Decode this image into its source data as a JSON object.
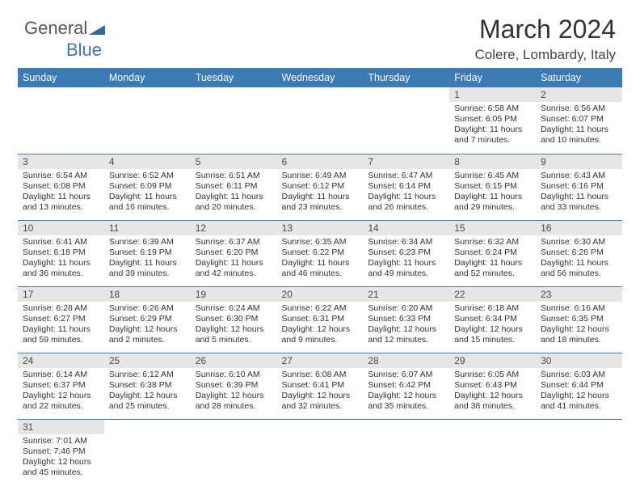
{
  "logo": {
    "text_gray": "General",
    "text_blue": "Blue",
    "tri_color": "#2d6aa3"
  },
  "title": "March 2024",
  "subtitle": "Colere, Lombardy, Italy",
  "header_bg": "#3b7ab5",
  "daynum_bg": "#e6e6e6",
  "row_border": "#3b7ab5",
  "weekdays": [
    "Sunday",
    "Monday",
    "Tuesday",
    "Wednesday",
    "Thursday",
    "Friday",
    "Saturday"
  ],
  "label_fontsize": 12.5,
  "cell_fontsize": 10.5,
  "rows": [
    [
      null,
      null,
      null,
      null,
      null,
      {
        "n": "1",
        "sr": "6:58 AM",
        "ss": "6:05 PM",
        "dh": "11",
        "dm": "7"
      },
      {
        "n": "2",
        "sr": "6:56 AM",
        "ss": "6:07 PM",
        "dh": "11",
        "dm": "10"
      }
    ],
    [
      {
        "n": "3",
        "sr": "6:54 AM",
        "ss": "6:08 PM",
        "dh": "11",
        "dm": "13"
      },
      {
        "n": "4",
        "sr": "6:52 AM",
        "ss": "6:09 PM",
        "dh": "11",
        "dm": "16"
      },
      {
        "n": "5",
        "sr": "6:51 AM",
        "ss": "6:11 PM",
        "dh": "11",
        "dm": "20"
      },
      {
        "n": "6",
        "sr": "6:49 AM",
        "ss": "6:12 PM",
        "dh": "11",
        "dm": "23"
      },
      {
        "n": "7",
        "sr": "6:47 AM",
        "ss": "6:14 PM",
        "dh": "11",
        "dm": "26"
      },
      {
        "n": "8",
        "sr": "6:45 AM",
        "ss": "6:15 PM",
        "dh": "11",
        "dm": "29"
      },
      {
        "n": "9",
        "sr": "6:43 AM",
        "ss": "6:16 PM",
        "dh": "11",
        "dm": "33"
      }
    ],
    [
      {
        "n": "10",
        "sr": "6:41 AM",
        "ss": "6:18 PM",
        "dh": "11",
        "dm": "36"
      },
      {
        "n": "11",
        "sr": "6:39 AM",
        "ss": "6:19 PM",
        "dh": "11",
        "dm": "39"
      },
      {
        "n": "12",
        "sr": "6:37 AM",
        "ss": "6:20 PM",
        "dh": "11",
        "dm": "42"
      },
      {
        "n": "13",
        "sr": "6:35 AM",
        "ss": "6:22 PM",
        "dh": "11",
        "dm": "46"
      },
      {
        "n": "14",
        "sr": "6:34 AM",
        "ss": "6:23 PM",
        "dh": "11",
        "dm": "49"
      },
      {
        "n": "15",
        "sr": "6:32 AM",
        "ss": "6:24 PM",
        "dh": "11",
        "dm": "52"
      },
      {
        "n": "16",
        "sr": "6:30 AM",
        "ss": "6:26 PM",
        "dh": "11",
        "dm": "56"
      }
    ],
    [
      {
        "n": "17",
        "sr": "6:28 AM",
        "ss": "6:27 PM",
        "dh": "11",
        "dm": "59"
      },
      {
        "n": "18",
        "sr": "6:26 AM",
        "ss": "6:29 PM",
        "dh": "12",
        "dm": "2"
      },
      {
        "n": "19",
        "sr": "6:24 AM",
        "ss": "6:30 PM",
        "dh": "12",
        "dm": "5"
      },
      {
        "n": "20",
        "sr": "6:22 AM",
        "ss": "6:31 PM",
        "dh": "12",
        "dm": "9"
      },
      {
        "n": "21",
        "sr": "6:20 AM",
        "ss": "6:33 PM",
        "dh": "12",
        "dm": "12"
      },
      {
        "n": "22",
        "sr": "6:18 AM",
        "ss": "6:34 PM",
        "dh": "12",
        "dm": "15"
      },
      {
        "n": "23",
        "sr": "6:16 AM",
        "ss": "6:35 PM",
        "dh": "12",
        "dm": "18"
      }
    ],
    [
      {
        "n": "24",
        "sr": "6:14 AM",
        "ss": "6:37 PM",
        "dh": "12",
        "dm": "22"
      },
      {
        "n": "25",
        "sr": "6:12 AM",
        "ss": "6:38 PM",
        "dh": "12",
        "dm": "25"
      },
      {
        "n": "26",
        "sr": "6:10 AM",
        "ss": "6:39 PM",
        "dh": "12",
        "dm": "28"
      },
      {
        "n": "27",
        "sr": "6:08 AM",
        "ss": "6:41 PM",
        "dh": "12",
        "dm": "32"
      },
      {
        "n": "28",
        "sr": "6:07 AM",
        "ss": "6:42 PM",
        "dh": "12",
        "dm": "35"
      },
      {
        "n": "29",
        "sr": "6:05 AM",
        "ss": "6:43 PM",
        "dh": "12",
        "dm": "38"
      },
      {
        "n": "30",
        "sr": "6:03 AM",
        "ss": "6:44 PM",
        "dh": "12",
        "dm": "41"
      }
    ],
    [
      {
        "n": "31",
        "sr": "7:01 AM",
        "ss": "7:46 PM",
        "dh": "12",
        "dm": "45"
      },
      null,
      null,
      null,
      null,
      null,
      null
    ]
  ],
  "labels": {
    "sunrise": "Sunrise:",
    "sunset": "Sunset:",
    "daylight": "Daylight:",
    "hours": "hours",
    "and": "and",
    "minutes": "minutes."
  }
}
